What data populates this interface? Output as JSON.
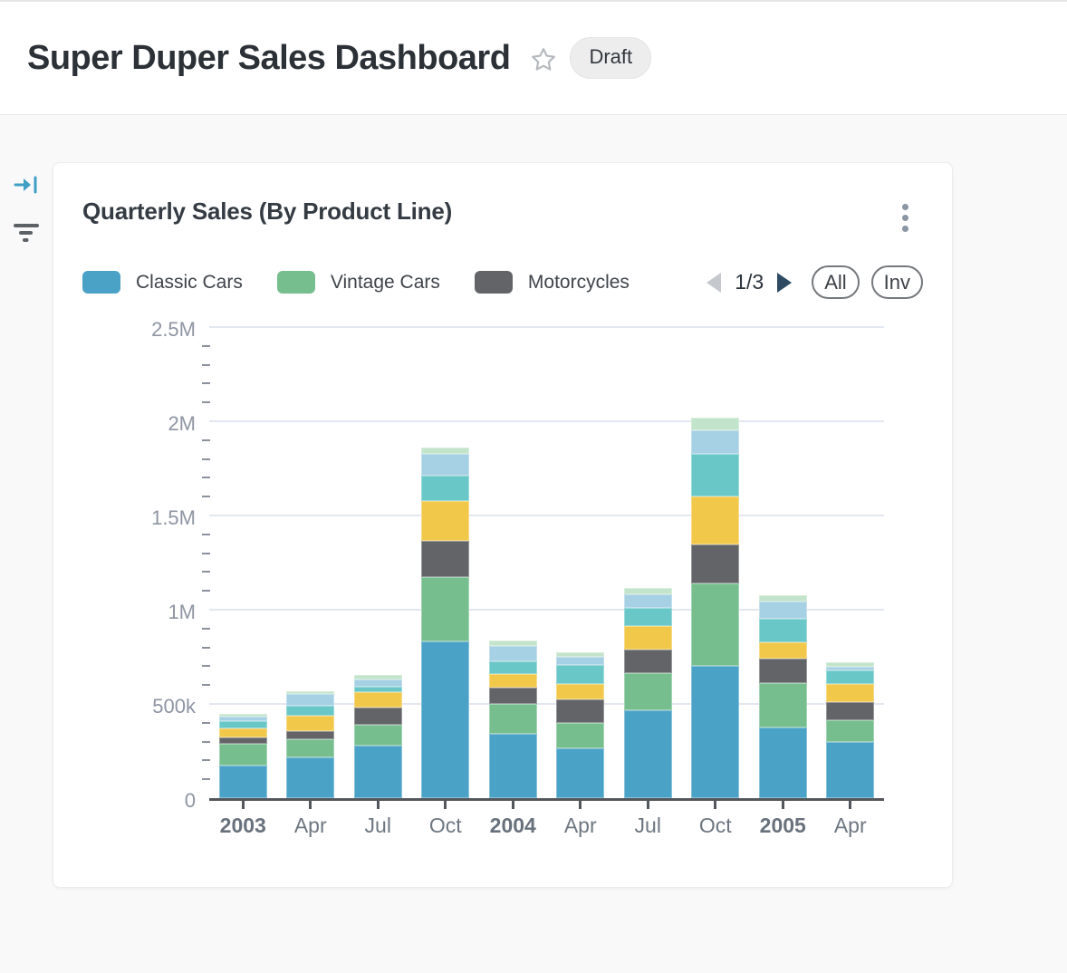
{
  "header": {
    "title": "Super Duper Sales Dashboard",
    "badge": "Draft"
  },
  "icons": {
    "star": "star-outline",
    "card_menu": "kebab-vertical",
    "legend_prev": "triangle-left",
    "legend_next": "triangle-right",
    "sidebar_top": "arrow-right-to-bar",
    "sidebar_bottom": "filter-lines"
  },
  "card": {
    "title": "Quarterly Sales (By Product Line)",
    "legend_pagination": {
      "current": "1/3"
    },
    "buttons": {
      "all": "All",
      "invert": "Inv"
    }
  },
  "chart_data": {
    "type": "bar",
    "stacked": true,
    "title": "Quarterly Sales (By Product Line)",
    "categories": [
      "2003",
      "Apr",
      "Jul",
      "Oct",
      "2004",
      "Apr",
      "Jul",
      "Oct",
      "2005",
      "Apr"
    ],
    "bold_categories": [
      "2003",
      "2004",
      "2005"
    ],
    "y_axis": {
      "min": 0,
      "max": 2500000,
      "major_step": 500000,
      "minor_step": 100000,
      "tick_labels": [
        "0",
        "500k",
        "1M",
        "1.5M",
        "2M",
        "2.5M"
      ]
    },
    "grid": true,
    "legend_position": "top",
    "legend_visible_series": [
      "Classic Cars",
      "Vintage Cars",
      "Motorcycles"
    ],
    "series": [
      {
        "name": "Classic Cars",
        "color": "#4BA2C7",
        "values": [
          173000,
          216000,
          279000,
          832000,
          341000,
          264000,
          466000,
          702000,
          375000,
          298000
        ]
      },
      {
        "name": "Vintage Cars",
        "color": "#76BE8E",
        "values": [
          115000,
          97000,
          110000,
          341000,
          159000,
          135000,
          197000,
          437000,
          236000,
          115000
        ]
      },
      {
        "name": "Motorcycles",
        "color": "#636467",
        "values": [
          34000,
          43000,
          92000,
          192000,
          87000,
          125000,
          125000,
          207000,
          129000,
          97000
        ]
      },
      {
        "name": "",
        "color": "#F2C84B",
        "values": [
          48000,
          81000,
          82000,
          212000,
          72000,
          82000,
          125000,
          255000,
          87000,
          96000
        ]
      },
      {
        "name": "",
        "color": "#69C8C7",
        "values": [
          39000,
          53000,
          28000,
          135000,
          67000,
          101000,
          97000,
          226000,
          125000,
          72000
        ]
      },
      {
        "name": "",
        "color": "#A6D0E4",
        "values": [
          24000,
          63000,
          39000,
          115000,
          82000,
          43000,
          72000,
          125000,
          91000,
          19000
        ]
      },
      {
        "name": "",
        "color": "#C2E4CA",
        "values": [
          14000,
          14000,
          24000,
          34000,
          29000,
          24000,
          33000,
          67000,
          34000,
          24000
        ]
      }
    ]
  }
}
